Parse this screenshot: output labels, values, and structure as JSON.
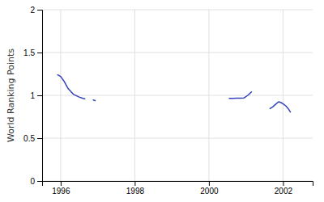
{
  "chart_data": {
    "type": "line",
    "ylabel": "World Ranking Points",
    "color": "#3344bb",
    "xlim": [
      1995.5,
      2002.8
    ],
    "ylim": [
      0,
      2
    ],
    "xticks": [
      1996,
      1998,
      2000,
      2002
    ],
    "yticks": [
      0,
      0.5,
      1,
      1.5,
      2
    ],
    "grid": true,
    "series": [
      {
        "x": [
          1995.92,
          1996.0,
          1996.1,
          1996.2,
          1996.35,
          1996.5,
          1996.6,
          1996.65
        ],
        "values": [
          1.24,
          1.22,
          1.16,
          1.08,
          1.01,
          0.98,
          0.965,
          0.96
        ]
      },
      {
        "x": [
          1996.88,
          1996.93
        ],
        "values": [
          0.945,
          0.938
        ]
      },
      {
        "x": [
          2000.55,
          2000.65,
          2000.75,
          2000.85,
          2000.95,
          2001.05,
          2001.15
        ],
        "values": [
          0.965,
          0.965,
          0.968,
          0.968,
          0.97,
          1.0,
          1.04
        ]
      },
      {
        "x": [
          2001.65,
          2001.72,
          2001.8,
          2001.88,
          2001.92,
          2001.97,
          2002.02,
          2002.08,
          2002.14,
          2002.2
        ],
        "values": [
          0.845,
          0.865,
          0.895,
          0.925,
          0.92,
          0.91,
          0.895,
          0.875,
          0.845,
          0.805
        ]
      }
    ]
  }
}
